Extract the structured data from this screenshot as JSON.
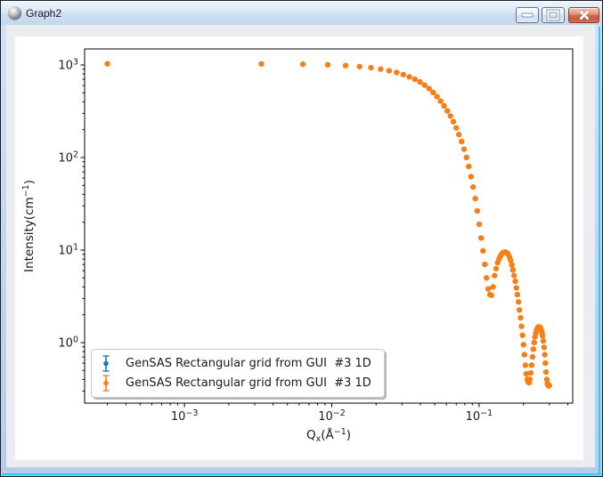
{
  "window": {
    "title": "Graph2",
    "icon": "gray-sphere-app-icon",
    "buttons": [
      {
        "id": "minimize",
        "glyph": "dash"
      },
      {
        "id": "maximize",
        "glyph": "square"
      },
      {
        "id": "close",
        "glyph": "x"
      }
    ]
  },
  "colors": {
    "series_blue": "#1f77b4",
    "series_orange": "#ff7f0e",
    "titlebar": "#d8e6f5",
    "window_border": "#bfd4ec",
    "border_accent_cyan": "#3ac4f2",
    "client_background": "#ecedf1",
    "figure_background": "#ffffff",
    "axes_foreground": "#000000",
    "close_button_red": "#c65a3e"
  },
  "legend": {
    "position": "lower-left",
    "marker_style": "errorbar-with-circle",
    "entries": [
      {
        "label": "GenSAS Rectangular grid from GUI  #3 1D",
        "color": "#1f77b4"
      },
      {
        "label": "GenSAS Rectangular grid from GUI  #3 1D",
        "color": "#ff7f0e"
      }
    ]
  },
  "chart_data": {
    "type": "scatter",
    "xscale": "log",
    "yscale": "log",
    "grid": false,
    "title": "",
    "xlabel": "Q_x(Å^-1)",
    "ylabel": "Intensity(cm^-1)",
    "xlabel_parts": [
      {
        "t": "Q"
      },
      {
        "t": "x",
        "sub": true
      },
      {
        "t": "(Å"
      },
      {
        "t": "−1",
        "sup": true
      },
      {
        "t": ")"
      }
    ],
    "ylabel_parts": [
      {
        "t": "Intensity(cm"
      },
      {
        "t": "−1",
        "sup": true
      },
      {
        "t": ")"
      }
    ],
    "xlim": [
      0.00021,
      0.432
    ],
    "ylim": [
      0.222,
      1490
    ],
    "x_major_tick_exponents": [
      -3,
      -2,
      -1
    ],
    "y_major_tick_exponents": [
      3,
      2,
      1,
      0
    ],
    "legend_position": "lower left",
    "marker": "circle",
    "series": [
      {
        "name": "GenSAS Rectangular grid from GUI  #3 1D",
        "color": "#1f77b4",
        "note": "identical data, fully hidden beneath orange series"
      },
      {
        "name": "GenSAS Rectangular grid from GUI  #3 1D",
        "color": "#ff7f0e"
      }
    ],
    "points_shared_by_both_series": true,
    "points": [
      [
        0.0003,
        1030
      ],
      [
        0.00333,
        1027
      ],
      [
        0.00636,
        1018
      ],
      [
        0.00938,
        1004
      ],
      [
        0.01241,
        985
      ],
      [
        0.01544,
        962
      ],
      [
        0.01846,
        934
      ],
      [
        0.02149,
        902
      ],
      [
        0.02452,
        866
      ],
      [
        0.02755,
        828
      ],
      [
        0.03057,
        787
      ],
      [
        0.0336,
        744
      ],
      [
        0.03663,
        700
      ],
      [
        0.03966,
        655
      ],
      [
        0.04268,
        605
      ],
      [
        0.04571,
        555
      ],
      [
        0.04874,
        505
      ],
      [
        0.05176,
        455
      ],
      [
        0.05479,
        406
      ],
      [
        0.05782,
        362
      ],
      [
        0.06084,
        320
      ],
      [
        0.06387,
        281
      ],
      [
        0.0669,
        244
      ],
      [
        0.06993,
        209
      ],
      [
        0.07295,
        177
      ],
      [
        0.07598,
        149
      ],
      [
        0.07901,
        123
      ],
      [
        0.08204,
        100
      ],
      [
        0.08506,
        80
      ],
      [
        0.08809,
        62
      ],
      [
        0.09112,
        48
      ],
      [
        0.09415,
        36
      ],
      [
        0.09717,
        26.5
      ],
      [
        0.1002,
        19
      ],
      [
        0.10323,
        13.5
      ],
      [
        0.10626,
        9.8
      ],
      [
        0.10929,
        7.0
      ],
      [
        0.11231,
        5.0
      ],
      [
        0.11534,
        3.8
      ],
      [
        0.11837,
        3.3
      ],
      [
        0.1214,
        3.25
      ],
      [
        0.12443,
        4.0
      ],
      [
        0.12745,
        5.3
      ],
      [
        0.13048,
        6.3
      ],
      [
        0.13351,
        7.3
      ],
      [
        0.13654,
        8.0
      ],
      [
        0.13957,
        8.6
      ],
      [
        0.14259,
        9.1
      ],
      [
        0.14562,
        9.4
      ],
      [
        0.14865,
        9.5
      ],
      [
        0.15168,
        9.5
      ],
      [
        0.15471,
        9.3
      ],
      [
        0.15774,
        9.0
      ],
      [
        0.16076,
        8.4
      ],
      [
        0.16379,
        7.7
      ],
      [
        0.16682,
        6.9
      ],
      [
        0.16985,
        6.1
      ],
      [
        0.17288,
        5.3
      ],
      [
        0.17591,
        4.6
      ],
      [
        0.17893,
        3.9
      ],
      [
        0.18196,
        3.3
      ],
      [
        0.18499,
        2.75
      ],
      [
        0.18802,
        2.25
      ],
      [
        0.19105,
        1.85
      ],
      [
        0.19408,
        1.5
      ],
      [
        0.1971,
        1.2
      ],
      [
        0.20013,
        0.95
      ],
      [
        0.20316,
        0.74
      ],
      [
        0.20619,
        0.57
      ],
      [
        0.20922,
        0.46
      ],
      [
        0.21225,
        0.4
      ],
      [
        0.21527,
        0.375
      ],
      [
        0.2183,
        0.37
      ],
      [
        0.22133,
        0.4
      ],
      [
        0.22436,
        0.47
      ],
      [
        0.22739,
        0.57
      ],
      [
        0.23042,
        0.7
      ],
      [
        0.23344,
        0.85
      ],
      [
        0.23647,
        1.0
      ],
      [
        0.2395,
        1.15
      ],
      [
        0.24253,
        1.27
      ],
      [
        0.24556,
        1.37
      ],
      [
        0.24859,
        1.43
      ],
      [
        0.25161,
        1.47
      ],
      [
        0.25464,
        1.48
      ],
      [
        0.25767,
        1.47
      ],
      [
        0.2607,
        1.44
      ],
      [
        0.26373,
        1.38
      ],
      [
        0.26676,
        1.29
      ],
      [
        0.26978,
        1.18
      ],
      [
        0.27281,
        1.04
      ],
      [
        0.27584,
        0.89
      ],
      [
        0.27887,
        0.74
      ],
      [
        0.2819,
        0.6
      ],
      [
        0.28493,
        0.48
      ],
      [
        0.28796,
        0.4
      ],
      [
        0.29098,
        0.36
      ],
      [
        0.29401,
        0.345
      ],
      [
        0.29704,
        0.34
      ],
      [
        0.30007,
        0.345
      ]
    ]
  }
}
